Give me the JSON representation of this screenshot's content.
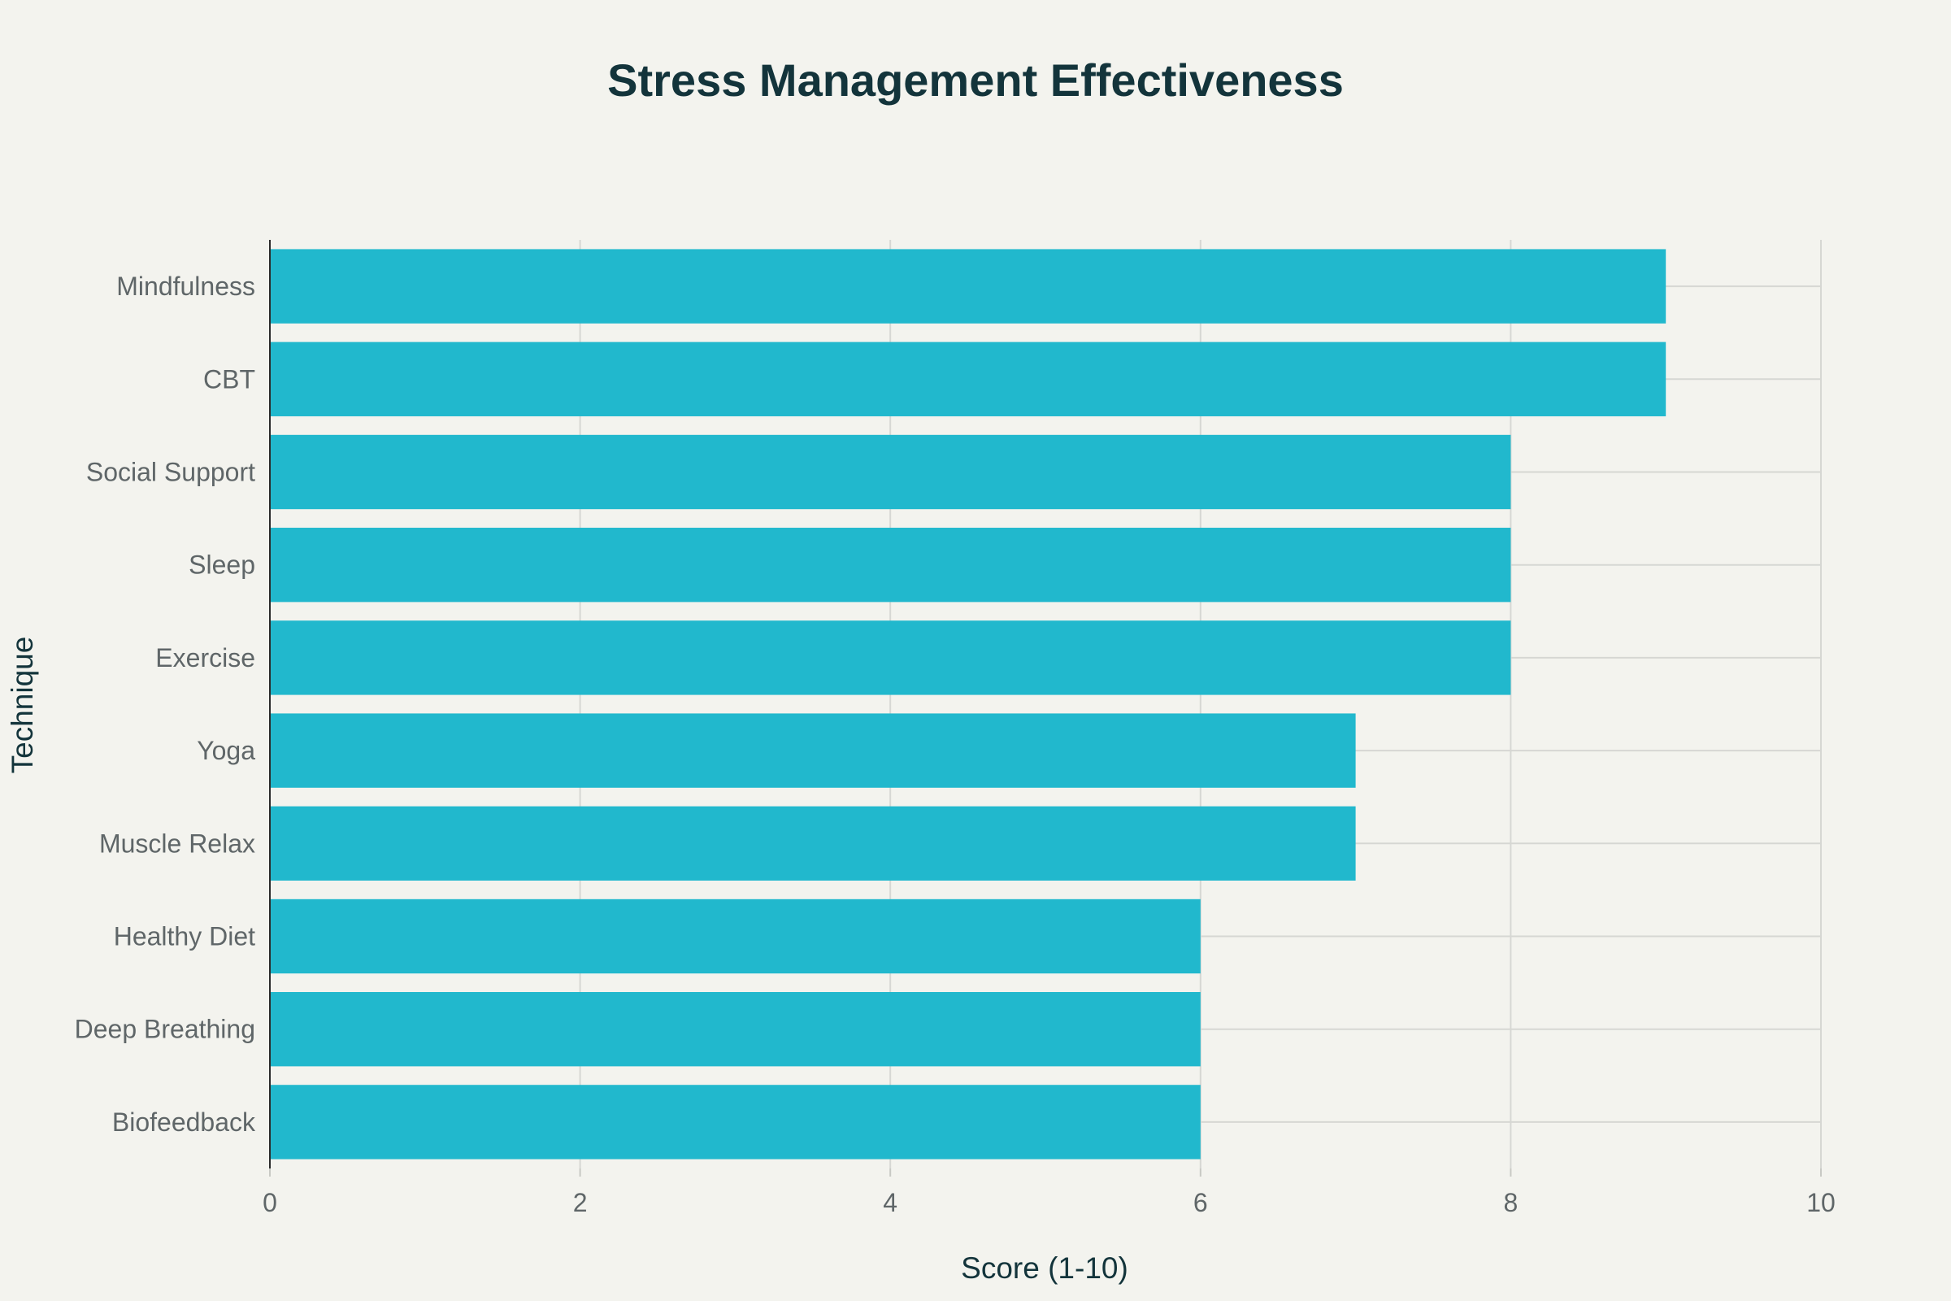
{
  "chart_data": {
    "type": "bar",
    "orientation": "horizontal",
    "title": "Stress Management Effectiveness",
    "xlabel": "Score (1-10)",
    "ylabel": "Technique",
    "categories": [
      "Mindfulness",
      "CBT",
      "Social Support",
      "Sleep",
      "Exercise",
      "Yoga",
      "Muscle Relax",
      "Healthy Diet",
      "Deep Breathing",
      "Biofeedback"
    ],
    "values": [
      9,
      9,
      8,
      8,
      8,
      7,
      7,
      6,
      6,
      6
    ],
    "xlim": [
      0,
      10
    ],
    "xticks": [
      "0",
      "2",
      "4",
      "6",
      "8",
      "10"
    ],
    "grid": true,
    "bar_color": "#21b8cd"
  }
}
